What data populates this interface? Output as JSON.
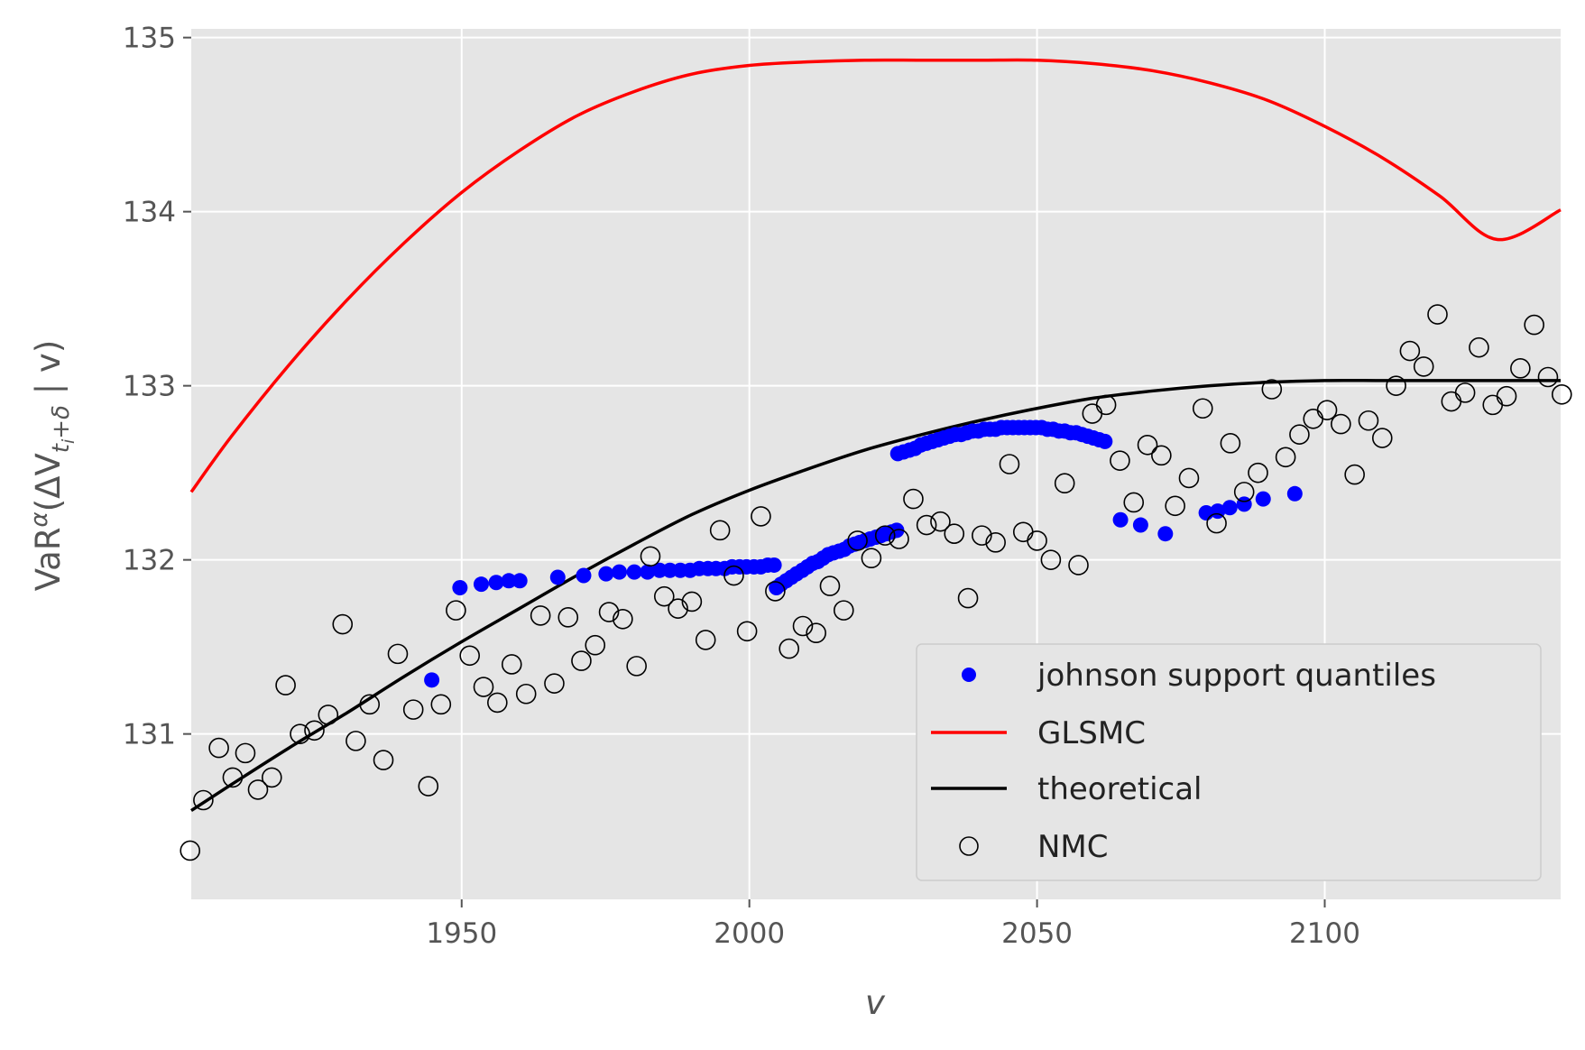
{
  "chart_data": {
    "type": "scatter",
    "title": "",
    "xlabel": "v",
    "ylabel_parts": {
      "base": "VaR",
      "sup": "α",
      "open": "(ΔV",
      "sub_t": "t",
      "sub_i": "i",
      "sub_rest": "+δ",
      "close": " | v)"
    },
    "xlim": [
      1903,
      2141
    ],
    "ylim": [
      130.05,
      135.05
    ],
    "xticks": [
      1950,
      2000,
      2050,
      2100
    ],
    "yticks": [
      131,
      132,
      133,
      134,
      135
    ],
    "grid": true,
    "legend_position": "lower-right",
    "colors": {
      "background": "#e5e5e5",
      "grid": "#ffffff",
      "johnson": "#0000ff",
      "glsmc": "#ff0000",
      "theoretical": "#000000",
      "nmc": "#000000"
    },
    "series": [
      {
        "name": "johnson support quantiles",
        "kind": "scatter-filled",
        "points": [
          [
            1944.8,
            131.31
          ],
          [
            1949.7,
            131.84
          ],
          [
            1953.4,
            131.86
          ],
          [
            1956.0,
            131.87
          ],
          [
            1958.2,
            131.88
          ],
          [
            1960.1,
            131.88
          ],
          [
            1966.7,
            131.9
          ],
          [
            1971.2,
            131.91
          ],
          [
            1975.1,
            131.92
          ],
          [
            1977.4,
            131.93
          ],
          [
            1980.0,
            131.93
          ],
          [
            1982.3,
            131.93
          ],
          [
            1984.4,
            131.94
          ],
          [
            1986.2,
            131.94
          ],
          [
            1988.0,
            131.94
          ],
          [
            1989.7,
            131.94
          ],
          [
            1991.3,
            131.95
          ],
          [
            1992.8,
            131.95
          ],
          [
            1994.2,
            131.95
          ],
          [
            1995.7,
            131.95
          ],
          [
            1997.0,
            131.96
          ],
          [
            1998.3,
            131.96
          ],
          [
            1999.5,
            131.96
          ],
          [
            2000.8,
            131.96
          ],
          [
            2002.0,
            131.96
          ],
          [
            2003.2,
            131.97
          ],
          [
            2004.3,
            131.97
          ],
          [
            2004.7,
            131.84
          ],
          [
            2005.5,
            131.86
          ],
          [
            2006.4,
            131.88
          ],
          [
            2007.3,
            131.9
          ],
          [
            2008.2,
            131.92
          ],
          [
            2009.2,
            131.94
          ],
          [
            2010.1,
            131.96
          ],
          [
            2011.0,
            131.98
          ],
          [
            2011.9,
            131.99
          ],
          [
            2012.8,
            132.01
          ],
          [
            2013.7,
            132.03
          ],
          [
            2014.6,
            132.04
          ],
          [
            2015.6,
            132.05
          ],
          [
            2016.5,
            132.06
          ],
          [
            2017.4,
            132.08
          ],
          [
            2018.3,
            132.09
          ],
          [
            2019.2,
            132.1
          ],
          [
            2020.1,
            132.11
          ],
          [
            2021.0,
            132.12
          ],
          [
            2022.0,
            132.13
          ],
          [
            2022.9,
            132.14
          ],
          [
            2023.8,
            132.15
          ],
          [
            2024.7,
            132.16
          ],
          [
            2025.6,
            132.17
          ],
          [
            2025.8,
            132.61
          ],
          [
            2026.8,
            132.62
          ],
          [
            2027.8,
            132.63
          ],
          [
            2028.8,
            132.64
          ],
          [
            2029.8,
            132.66
          ],
          [
            2030.8,
            132.67
          ],
          [
            2031.8,
            132.68
          ],
          [
            2032.8,
            132.69
          ],
          [
            2033.8,
            132.7
          ],
          [
            2034.8,
            132.71
          ],
          [
            2035.8,
            132.72
          ],
          [
            2036.8,
            132.72
          ],
          [
            2037.8,
            132.73
          ],
          [
            2038.8,
            132.74
          ],
          [
            2039.8,
            132.74
          ],
          [
            2040.8,
            132.75
          ],
          [
            2041.8,
            132.75
          ],
          [
            2042.8,
            132.75
          ],
          [
            2043.8,
            132.76
          ],
          [
            2044.8,
            132.76
          ],
          [
            2045.8,
            132.76
          ],
          [
            2046.8,
            132.76
          ],
          [
            2047.8,
            132.76
          ],
          [
            2048.8,
            132.76
          ],
          [
            2049.8,
            132.76
          ],
          [
            2050.8,
            132.76
          ],
          [
            2051.8,
            132.75
          ],
          [
            2052.8,
            132.75
          ],
          [
            2053.8,
            132.74
          ],
          [
            2054.8,
            132.74
          ],
          [
            2055.8,
            132.73
          ],
          [
            2056.8,
            132.73
          ],
          [
            2057.8,
            132.72
          ],
          [
            2058.8,
            132.71
          ],
          [
            2059.8,
            132.7
          ],
          [
            2060.8,
            132.69
          ],
          [
            2061.8,
            132.68
          ],
          [
            2064.5,
            132.23
          ],
          [
            2068.0,
            132.2
          ],
          [
            2072.3,
            132.15
          ],
          [
            2079.4,
            132.27
          ],
          [
            2081.4,
            132.28
          ],
          [
            2083.5,
            132.3
          ],
          [
            2086.0,
            132.32
          ],
          [
            2089.3,
            132.35
          ],
          [
            2094.8,
            132.38
          ]
        ]
      },
      {
        "name": "GLSMC",
        "kind": "line",
        "points": [
          [
            1903,
            132.39
          ],
          [
            1910,
            132.71
          ],
          [
            1920,
            133.12
          ],
          [
            1930,
            133.49
          ],
          [
            1940,
            133.82
          ],
          [
            1950,
            134.11
          ],
          [
            1960,
            134.35
          ],
          [
            1970,
            134.55
          ],
          [
            1980,
            134.69
          ],
          [
            1990,
            134.79
          ],
          [
            2000,
            134.84
          ],
          [
            2010,
            134.86
          ],
          [
            2020,
            134.87
          ],
          [
            2030,
            134.87
          ],
          [
            2040,
            134.87
          ],
          [
            2050,
            134.87
          ],
          [
            2060,
            134.85
          ],
          [
            2070,
            134.81
          ],
          [
            2080,
            134.74
          ],
          [
            2090,
            134.64
          ],
          [
            2100,
            134.49
          ],
          [
            2110,
            134.31
          ],
          [
            2120,
            134.09
          ],
          [
            2130,
            133.84
          ],
          [
            2141,
            134.01
          ]
        ]
      },
      {
        "name": "theoretical",
        "kind": "line",
        "points": [
          [
            1903,
            130.56
          ],
          [
            1910,
            130.71
          ],
          [
            1920,
            130.92
          ],
          [
            1930,
            131.12
          ],
          [
            1940,
            131.33
          ],
          [
            1950,
            131.53
          ],
          [
            1960,
            131.72
          ],
          [
            1970,
            131.91
          ],
          [
            1980,
            132.09
          ],
          [
            1990,
            132.26
          ],
          [
            2000,
            132.4
          ],
          [
            2010,
            132.52
          ],
          [
            2020,
            132.63
          ],
          [
            2030,
            132.72
          ],
          [
            2040,
            132.8
          ],
          [
            2050,
            132.87
          ],
          [
            2060,
            132.93
          ],
          [
            2070,
            132.97
          ],
          [
            2080,
            133.0
          ],
          [
            2090,
            133.02
          ],
          [
            2100,
            133.03
          ],
          [
            2110,
            133.03
          ],
          [
            2120,
            133.03
          ],
          [
            2130,
            133.03
          ],
          [
            2141,
            133.03
          ]
        ]
      },
      {
        "name": "NMC",
        "kind": "scatter-hollow",
        "points": [
          [
            1902.8,
            130.33
          ],
          [
            1905.1,
            130.62
          ],
          [
            1907.8,
            130.92
          ],
          [
            1910.2,
            130.75
          ],
          [
            1912.4,
            130.89
          ],
          [
            1914.6,
            130.68
          ],
          [
            1917.0,
            130.75
          ],
          [
            1919.4,
            131.28
          ],
          [
            1921.9,
            131.0
          ],
          [
            1924.4,
            131.02
          ],
          [
            1926.8,
            131.11
          ],
          [
            1929.3,
            131.63
          ],
          [
            1931.6,
            130.96
          ],
          [
            1934.0,
            131.17
          ],
          [
            1936.4,
            130.85
          ],
          [
            1938.9,
            131.46
          ],
          [
            1941.6,
            131.14
          ],
          [
            1944.2,
            130.7
          ],
          [
            1946.4,
            131.17
          ],
          [
            1949.0,
            131.71
          ],
          [
            1951.4,
            131.45
          ],
          [
            1953.8,
            131.27
          ],
          [
            1956.2,
            131.18
          ],
          [
            1958.7,
            131.4
          ],
          [
            1961.2,
            131.23
          ],
          [
            1963.7,
            131.68
          ],
          [
            1966.1,
            131.29
          ],
          [
            1968.5,
            131.67
          ],
          [
            1970.8,
            131.42
          ],
          [
            1973.2,
            131.51
          ],
          [
            1975.6,
            131.7
          ],
          [
            1978.0,
            131.66
          ],
          [
            1980.4,
            131.39
          ],
          [
            1982.8,
            132.02
          ],
          [
            1985.2,
            131.79
          ],
          [
            1987.6,
            131.72
          ],
          [
            1990.0,
            131.76
          ],
          [
            1992.4,
            131.54
          ],
          [
            1994.9,
            132.17
          ],
          [
            1997.3,
            131.91
          ],
          [
            1999.6,
            131.59
          ],
          [
            2002.0,
            132.25
          ],
          [
            2004.5,
            131.82
          ],
          [
            2006.9,
            131.49
          ],
          [
            2009.3,
            131.62
          ],
          [
            2011.6,
            131.58
          ],
          [
            2014.0,
            131.85
          ],
          [
            2016.4,
            131.71
          ],
          [
            2018.8,
            132.11
          ],
          [
            2021.2,
            132.01
          ],
          [
            2023.6,
            132.14
          ],
          [
            2026.0,
            132.12
          ],
          [
            2028.5,
            132.35
          ],
          [
            2030.8,
            132.2
          ],
          [
            2033.2,
            132.22
          ],
          [
            2035.6,
            132.15
          ],
          [
            2038.0,
            131.78
          ],
          [
            2040.4,
            132.14
          ],
          [
            2042.8,
            132.1
          ],
          [
            2045.2,
            132.55
          ],
          [
            2047.6,
            132.16
          ],
          [
            2050.0,
            132.11
          ],
          [
            2052.4,
            132.0
          ],
          [
            2054.8,
            132.44
          ],
          [
            2057.2,
            131.97
          ],
          [
            2059.6,
            132.84
          ],
          [
            2062.0,
            132.89
          ],
          [
            2064.4,
            132.57
          ],
          [
            2066.8,
            132.33
          ],
          [
            2069.2,
            132.66
          ],
          [
            2071.6,
            132.6
          ],
          [
            2074.0,
            132.31
          ],
          [
            2076.4,
            132.47
          ],
          [
            2078.8,
            132.87
          ],
          [
            2081.2,
            132.21
          ],
          [
            2083.6,
            132.67
          ],
          [
            2086.0,
            132.39
          ],
          [
            2088.4,
            132.5
          ],
          [
            2090.8,
            132.98
          ],
          [
            2093.2,
            132.59
          ],
          [
            2095.6,
            132.72
          ],
          [
            2098.0,
            132.81
          ],
          [
            2100.4,
            132.86
          ],
          [
            2102.8,
            132.78
          ],
          [
            2105.2,
            132.49
          ],
          [
            2107.6,
            132.8
          ],
          [
            2110.0,
            132.7
          ],
          [
            2112.4,
            133.0
          ],
          [
            2114.8,
            133.2
          ],
          [
            2117.2,
            133.11
          ],
          [
            2119.6,
            133.41
          ],
          [
            2122.0,
            132.91
          ],
          [
            2124.4,
            132.96
          ],
          [
            2126.8,
            133.22
          ],
          [
            2129.2,
            132.89
          ],
          [
            2131.6,
            132.94
          ],
          [
            2134.0,
            133.1
          ],
          [
            2136.4,
            133.35
          ],
          [
            2138.8,
            133.05
          ],
          [
            2141.2,
            132.95
          ]
        ]
      }
    ]
  }
}
